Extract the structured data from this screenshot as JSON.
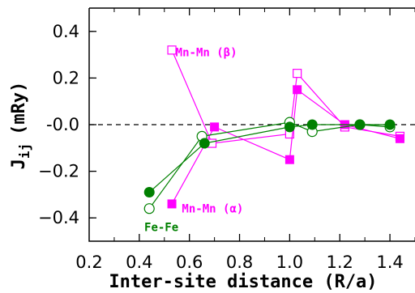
{
  "chart_data": {
    "type": "scatter",
    "title": "",
    "xlabel": "Inter-site distance (R/a)",
    "ylabel_main": "J",
    "ylabel_sub": "ij",
    "ylabel_unit": "(mRy)",
    "xlim": [
      0.2,
      1.5
    ],
    "ylim": [
      -0.5,
      0.5
    ],
    "xticks": [
      {
        "value": 0.2,
        "label": "0.2"
      },
      {
        "value": 0.4,
        "label": "0.4"
      },
      {
        "value": 0.6,
        "label": "0.6"
      },
      {
        "value": 0.8,
        "label": "0.8"
      },
      {
        "value": 1.0,
        "label": "1.0"
      },
      {
        "value": 1.2,
        "label": "1.2"
      },
      {
        "value": 1.4,
        "label": "1.4"
      }
    ],
    "yticks": [
      {
        "value": 0.4,
        "label": "0.4"
      },
      {
        "value": 0.2,
        "label": "0.2"
      },
      {
        "value": 0.0,
        "label": "-0.0"
      },
      {
        "value": -0.2,
        "label": "−0.2"
      },
      {
        "value": -0.4,
        "label": "−0.4"
      }
    ],
    "reference_line_y": 0.0,
    "series": [
      {
        "key": "mn_beta",
        "name": "Mn-Mn (β)",
        "marker": "open-square",
        "color": "#ff00ff",
        "x": [
          0.53,
          0.69,
          1.0,
          1.03,
          1.22,
          1.44
        ],
        "y": [
          0.32,
          -0.08,
          -0.04,
          0.22,
          -0.01,
          -0.05
        ]
      },
      {
        "key": "mn_alpha",
        "name": "Mn-Mn (α)",
        "marker": "filled-square",
        "color": "#ff00ff",
        "x": [
          0.53,
          0.7,
          1.0,
          1.03,
          1.22,
          1.44
        ],
        "y": [
          -0.34,
          -0.01,
          -0.15,
          0.15,
          0.0,
          -0.06
        ]
      },
      {
        "key": "fefe_open",
        "name": "",
        "marker": "open-circle",
        "color": "#008000",
        "x": [
          0.44,
          0.65,
          1.0,
          1.09,
          1.28,
          1.4
        ],
        "y": [
          -0.36,
          -0.05,
          0.01,
          -0.03,
          0.0,
          -0.01
        ]
      },
      {
        "key": "fefe_filled",
        "name": "Fe-Fe",
        "marker": "filled-circle",
        "color": "#008000",
        "x": [
          0.44,
          0.66,
          1.0,
          1.09,
          1.28,
          1.4
        ],
        "y": [
          -0.29,
          -0.08,
          -0.01,
          0.0,
          0.0,
          0.0
        ]
      }
    ],
    "annotations": [
      {
        "text": "Mn-Mn (β)",
        "color": "#ff00ff",
        "x": 0.545,
        "y": 0.31
      },
      {
        "text": "Mn-Mn (α)",
        "color": "#ff00ff",
        "x": 0.57,
        "y": -0.36
      },
      {
        "text": "Fe-Fe",
        "color": "#008000",
        "x": 0.42,
        "y": -0.44
      }
    ]
  }
}
